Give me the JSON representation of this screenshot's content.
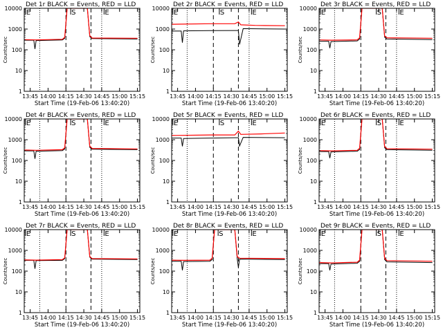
{
  "colors": {
    "events": "#000000",
    "lld": "#ff0000",
    "background": "#ffffff",
    "axis": "#000000"
  },
  "chart_data": [
    {
      "type": "line",
      "title": "Det 1r BLACK = Events, RED = LLD",
      "xlabel": "Start Time (19-Feb-06 13:40:20)",
      "ylabel": "Counts/sec",
      "xlim": [
        "13:40",
        "15:17"
      ],
      "ylim": [
        1,
        10000
      ],
      "yscale": "log",
      "xticks": [
        "13:45",
        "14:00",
        "14:15",
        "14:30",
        "14:45",
        "15:00",
        "15:15"
      ],
      "yticks": [
        "1",
        "10",
        "100",
        "1000",
        "10000"
      ],
      "markers": [
        {
          "time": "13:41",
          "label": "E"
        },
        {
          "time": "14:19",
          "label": "S"
        },
        {
          "time": "14:47",
          "label": "E"
        }
      ],
      "dotted_lines": [
        "13:53",
        "14:45"
      ],
      "dashed_lines": [
        "14:15",
        "14:36"
      ],
      "series": [
        {
          "name": "Events",
          "color": "#000000",
          "x": [
            "13:40",
            "13:48",
            "13:49",
            "13:50",
            "14:12",
            "14:14",
            "14:16",
            "14:33",
            "14:35",
            "14:37",
            "15:15"
          ],
          "y": [
            290,
            290,
            110,
            280,
            300,
            360,
            10000,
            10000,
            430,
            350,
            330
          ]
        },
        {
          "name": "LLD",
          "color": "#ff0000",
          "x": [
            "13:40",
            "13:50",
            "14:12",
            "14:14",
            "14:16",
            "14:33",
            "14:35",
            "14:37",
            "15:15"
          ],
          "y": [
            310,
            300,
            320,
            400,
            10000,
            10000,
            480,
            370,
            360
          ]
        }
      ]
    },
    {
      "type": "line",
      "title": "Det 2r BLACK = Events, RED = LLD",
      "xlabel": "Start Time (19-Feb-06 13:40:20)",
      "ylabel": "Counts/sec",
      "xlim": [
        "13:40",
        "15:17"
      ],
      "ylim": [
        1,
        10000
      ],
      "yscale": "log",
      "xticks": [
        "13:45",
        "14:00",
        "14:15",
        "14:30",
        "14:45",
        "15:00",
        "15:15"
      ],
      "yticks": [
        "1",
        "10",
        "100",
        "1000",
        "10000"
      ],
      "markers": [
        {
          "time": "13:41",
          "label": "E"
        },
        {
          "time": "14:20",
          "label": "S"
        },
        {
          "time": "14:47",
          "label": "E"
        }
      ],
      "dotted_lines": [
        "13:53",
        "14:45"
      ],
      "dashed_lines": [
        "14:15",
        "14:36"
      ],
      "series": [
        {
          "name": "Events",
          "color": "#000000",
          "x": [
            "13:40",
            "13:48",
            "13:49",
            "13:50",
            "14:12",
            "14:14",
            "14:33",
            "14:36",
            "14:37",
            "14:40",
            "15:15"
          ],
          "y": [
            800,
            800,
            220,
            820,
            840,
            840,
            850,
            850,
            180,
            1050,
            1000
          ]
        },
        {
          "name": "LLD",
          "color": "#ff0000",
          "x": [
            "13:40",
            "14:12",
            "14:14",
            "14:33",
            "14:36",
            "14:38",
            "14:50",
            "15:15"
          ],
          "y": [
            1700,
            1800,
            1800,
            1800,
            2200,
            1600,
            1500,
            1450
          ]
        }
      ]
    },
    {
      "type": "line",
      "title": "Det 3r BLACK = Events, RED = LLD",
      "xlabel": "Start Time (19-Feb-06 13:40:20)",
      "ylabel": "Counts/sec",
      "xlim": [
        "13:40",
        "15:17"
      ],
      "ylim": [
        1,
        10000
      ],
      "yscale": "log",
      "xticks": [
        "13:45",
        "14:00",
        "14:15",
        "14:30",
        "14:45",
        "15:00",
        "15:15"
      ],
      "yticks": [
        "1",
        "10",
        "100",
        "1000",
        "10000"
      ],
      "markers": [
        {
          "time": "13:41",
          "label": "E"
        },
        {
          "time": "14:28",
          "label": "S"
        },
        {
          "time": "14:47",
          "label": "E"
        }
      ],
      "dotted_lines": [
        "13:53",
        "14:45"
      ],
      "dashed_lines": [
        "14:15",
        "14:36"
      ],
      "series": [
        {
          "name": "Events",
          "color": "#000000",
          "x": [
            "13:40",
            "13:48",
            "13:49",
            "13:50",
            "14:12",
            "14:14",
            "14:16",
            "14:33",
            "14:35",
            "14:37",
            "15:15"
          ],
          "y": [
            260,
            260,
            120,
            250,
            270,
            330,
            10000,
            10000,
            400,
            330,
            310
          ]
        },
        {
          "name": "LLD",
          "color": "#ff0000",
          "x": [
            "13:40",
            "13:50",
            "14:12",
            "14:14",
            "14:16",
            "14:33",
            "14:35",
            "14:37",
            "15:15"
          ],
          "y": [
            300,
            290,
            300,
            380,
            10000,
            10000,
            460,
            380,
            360
          ]
        }
      ]
    },
    {
      "type": "line",
      "title": "Det 4r BLACK = Events, RED = LLD",
      "xlabel": "Start Time (19-Feb-06 13:40:20)",
      "ylabel": "Counts/sec",
      "xlim": [
        "13:40",
        "15:17"
      ],
      "ylim": [
        1,
        10000
      ],
      "yscale": "log",
      "xticks": [
        "13:45",
        "14:00",
        "14:15",
        "14:30",
        "14:45",
        "15:00",
        "15:15"
      ],
      "yticks": [
        "1",
        "10",
        "100",
        "1000",
        "10000"
      ],
      "markers": [
        {
          "time": "13:41",
          "label": "E"
        },
        {
          "time": "14:19",
          "label": "S"
        },
        {
          "time": "14:47",
          "label": "E"
        }
      ],
      "dotted_lines": [
        "13:53",
        "14:45"
      ],
      "dashed_lines": [
        "14:15",
        "14:36"
      ],
      "series": [
        {
          "name": "Events",
          "color": "#000000",
          "x": [
            "13:40",
            "13:48",
            "13:49",
            "13:50",
            "14:12",
            "14:14",
            "14:16",
            "14:33",
            "14:35",
            "14:37",
            "15:15"
          ],
          "y": [
            290,
            290,
            120,
            280,
            300,
            360,
            10000,
            10000,
            430,
            350,
            330
          ]
        },
        {
          "name": "LLD",
          "color": "#ff0000",
          "x": [
            "13:40",
            "13:50",
            "14:12",
            "14:14",
            "14:16",
            "14:33",
            "14:35",
            "14:37",
            "15:15"
          ],
          "y": [
            320,
            310,
            330,
            410,
            10000,
            10000,
            490,
            380,
            360
          ]
        }
      ]
    },
    {
      "type": "line",
      "title": "Det 5r BLACK = Events, RED = LLD",
      "xlabel": "Start Time (19-Feb-06 13:40:20)",
      "ylabel": "Counts/sec",
      "xlim": [
        "13:40",
        "15:17"
      ],
      "ylim": [
        1,
        10000
      ],
      "yscale": "log",
      "xticks": [
        "13:45",
        "14:00",
        "14:15",
        "14:30",
        "14:45",
        "15:00",
        "15:15"
      ],
      "yticks": [
        "1",
        "10",
        "100",
        "1000",
        "10000"
      ],
      "markers": [
        {
          "time": "13:41",
          "label": "E"
        },
        {
          "time": "14:20",
          "label": "S"
        },
        {
          "time": "14:47",
          "label": "E"
        }
      ],
      "dotted_lines": [
        "13:53",
        "14:45"
      ],
      "dashed_lines": [
        "14:15",
        "14:36"
      ],
      "series": [
        {
          "name": "Events",
          "color": "#000000",
          "x": [
            "13:40",
            "13:48",
            "13:49",
            "13:50",
            "14:12",
            "14:14",
            "14:33",
            "14:36",
            "14:37",
            "14:40",
            "15:15"
          ],
          "y": [
            1200,
            1200,
            480,
            1150,
            1200,
            1200,
            1250,
            1250,
            500,
            1300,
            1250
          ]
        },
        {
          "name": "LLD",
          "color": "#ff0000",
          "x": [
            "13:40",
            "14:12",
            "14:14",
            "14:33",
            "14:36",
            "14:38",
            "14:55",
            "15:15"
          ],
          "y": [
            1600,
            1700,
            1700,
            1700,
            2600,
            1800,
            1900,
            2100
          ]
        }
      ]
    },
    {
      "type": "line",
      "title": "Det 6r BLACK = Events, RED = LLD",
      "xlabel": "Start Time (19-Feb-06 13:40:20)",
      "ylabel": "Counts/sec",
      "xlim": [
        "13:40",
        "15:17"
      ],
      "ylim": [
        1,
        10000
      ],
      "yscale": "log",
      "xticks": [
        "13:45",
        "14:00",
        "14:15",
        "14:30",
        "14:45",
        "15:00",
        "15:15"
      ],
      "yticks": [
        "1",
        "10",
        "100",
        "1000",
        "10000"
      ],
      "markers": [
        {
          "time": "13:41",
          "label": "E"
        },
        {
          "time": "14:28",
          "label": "S"
        },
        {
          "time": "14:47",
          "label": "E"
        }
      ],
      "dotted_lines": [
        "13:53",
        "14:45"
      ],
      "dashed_lines": [
        "14:15",
        "14:36"
      ],
      "series": [
        {
          "name": "Events",
          "color": "#000000",
          "x": [
            "13:40",
            "13:48",
            "13:49",
            "13:50",
            "14:12",
            "14:14",
            "14:16",
            "14:33",
            "14:35",
            "14:37",
            "15:15"
          ],
          "y": [
            270,
            270,
            130,
            260,
            280,
            340,
            10000,
            10000,
            410,
            330,
            310
          ]
        },
        {
          "name": "LLD",
          "color": "#ff0000",
          "x": [
            "13:40",
            "13:50",
            "14:12",
            "14:14",
            "14:16",
            "14:33",
            "14:35",
            "14:37",
            "15:15"
          ],
          "y": [
            300,
            290,
            310,
            390,
            10000,
            10000,
            470,
            370,
            350
          ]
        }
      ]
    },
    {
      "type": "line",
      "title": "Det 7r BLACK = Events, RED = LLD",
      "xlabel": "Start Time (19-Feb-06 13:40:20)",
      "ylabel": "Counts/sec",
      "xlim": [
        "13:40",
        "15:17"
      ],
      "ylim": [
        1,
        10000
      ],
      "yscale": "log",
      "xticks": [
        "13:45",
        "14:00",
        "14:15",
        "14:30",
        "14:45",
        "15:00",
        "15:15"
      ],
      "yticks": [
        "1",
        "10",
        "100",
        "1000",
        "10000"
      ],
      "markers": [
        {
          "time": "13:41",
          "label": "E"
        },
        {
          "time": "14:19",
          "label": "S"
        },
        {
          "time": "14:47",
          "label": "E"
        }
      ],
      "dotted_lines": [
        "13:53",
        "14:45"
      ],
      "dashed_lines": [
        "14:15",
        "14:36"
      ],
      "series": [
        {
          "name": "Events",
          "color": "#000000",
          "x": [
            "13:40",
            "13:48",
            "13:49",
            "13:50",
            "14:12",
            "14:14",
            "14:16",
            "14:33",
            "14:35",
            "14:37",
            "15:15"
          ],
          "y": [
            330,
            330,
            130,
            320,
            330,
            400,
            10000,
            10000,
            470,
            380,
            360
          ]
        },
        {
          "name": "LLD",
          "color": "#ff0000",
          "x": [
            "13:40",
            "13:50",
            "14:12",
            "14:14",
            "14:16",
            "14:33",
            "14:35",
            "14:37",
            "15:15"
          ],
          "y": [
            350,
            340,
            360,
            440,
            10000,
            10000,
            510,
            400,
            390
          ]
        }
      ]
    },
    {
      "type": "line",
      "title": "Det 8r BLACK = Events, RED = LLD",
      "xlabel": "Start Time (19-Feb-06 13:40:20)",
      "ylabel": "Counts/sec",
      "xlim": [
        "13:40",
        "15:17"
      ],
      "ylim": [
        1,
        10000
      ],
      "yscale": "log",
      "xticks": [
        "13:45",
        "14:00",
        "14:15",
        "14:30",
        "14:45",
        "15:00",
        "15:15"
      ],
      "yticks": [
        "1",
        "10",
        "100",
        "1000",
        "10000"
      ],
      "markers": [
        {
          "time": "13:41",
          "label": "E"
        },
        {
          "time": "14:19",
          "label": "S"
        },
        {
          "time": "14:47",
          "label": "E"
        }
      ],
      "dotted_lines": [
        "13:53",
        "14:45"
      ],
      "dashed_lines": [
        "14:15",
        "14:36"
      ],
      "series": [
        {
          "name": "Events",
          "color": "#000000",
          "x": [
            "13:40",
            "13:48",
            "13:49",
            "13:50",
            "14:12",
            "14:14",
            "14:16",
            "14:33",
            "14:35",
            "14:36",
            "14:37",
            "15:15"
          ],
          "y": [
            300,
            300,
            110,
            290,
            300,
            360,
            10000,
            10000,
            400,
            150,
            380,
            360
          ]
        },
        {
          "name": "LLD",
          "color": "#ff0000",
          "x": [
            "13:40",
            "13:50",
            "14:12",
            "14:14",
            "14:16",
            "14:33",
            "14:35",
            "14:37",
            "15:15"
          ],
          "y": [
            340,
            330,
            340,
            420,
            10000,
            10000,
            500,
            420,
            400
          ]
        }
      ]
    },
    {
      "type": "line",
      "title": "Det 9r BLACK = Events, RED = LLD",
      "xlabel": "Start Time (19-Feb-06 13:40:20)",
      "ylabel": "Counts/sec",
      "xlim": [
        "13:40",
        "15:17"
      ],
      "ylim": [
        1,
        10000
      ],
      "yscale": "log",
      "xticks": [
        "13:45",
        "14:00",
        "14:15",
        "14:30",
        "14:45",
        "15:00",
        "15:15"
      ],
      "yticks": [
        "1",
        "10",
        "100",
        "1000",
        "10000"
      ],
      "markers": [
        {
          "time": "13:41",
          "label": "E"
        },
        {
          "time": "14:28",
          "label": "S"
        },
        {
          "time": "14:47",
          "label": "E"
        }
      ],
      "dotted_lines": [
        "13:53",
        "14:45"
      ],
      "dashed_lines": [
        "14:15",
        "14:36"
      ],
      "series": [
        {
          "name": "Events",
          "color": "#000000",
          "x": [
            "13:40",
            "13:48",
            "13:49",
            "13:50",
            "14:12",
            "14:14",
            "14:16",
            "14:33",
            "14:35",
            "14:37",
            "15:15"
          ],
          "y": [
            230,
            230,
            110,
            220,
            240,
            300,
            10000,
            10000,
            360,
            280,
            260
          ]
        },
        {
          "name": "LLD",
          "color": "#ff0000",
          "x": [
            "13:40",
            "13:50",
            "14:12",
            "14:14",
            "14:16",
            "14:33",
            "14:35",
            "14:37",
            "15:15"
          ],
          "y": [
            260,
            250,
            270,
            340,
            10000,
            10000,
            420,
            320,
            300
          ]
        }
      ]
    }
  ]
}
